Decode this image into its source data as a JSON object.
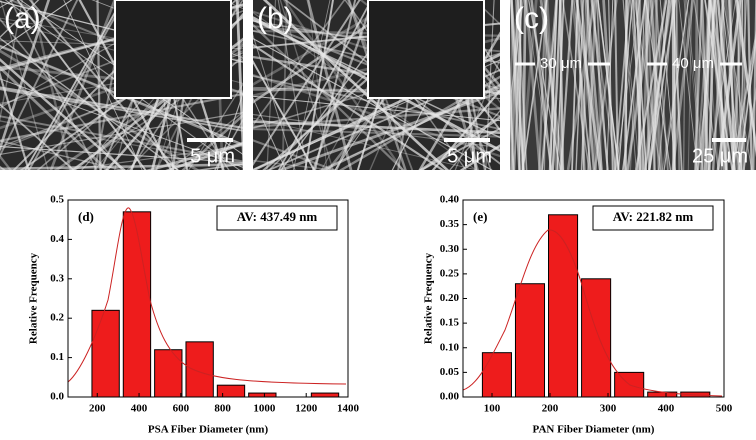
{
  "images": [
    {
      "label": "(a)",
      "scale": "5 μm"
    },
    {
      "label": "(b)",
      "scale": "5 μm"
    },
    {
      "label": "(c)",
      "scale": "25 μm",
      "marks": [
        "30 μm",
        "40 μm"
      ]
    }
  ],
  "chart_data": [
    {
      "type": "histogram",
      "panel": "(d)",
      "annotation": "AV: 437.49 nm",
      "x_label": "PSA Fiber Diameter (nm)",
      "y_label": "Relative Frequency",
      "color": "#ee1c1c",
      "bins": [
        165,
        315,
        465,
        615,
        765,
        915,
        1065,
        1215,
        1365
      ],
      "values": [
        0.22,
        0.47,
        0.12,
        0.14,
        0.03,
        0.01,
        0,
        0.01
      ],
      "xlim": [
        60,
        1400
      ],
      "xticks": [
        200,
        400,
        600,
        800,
        1000,
        1200,
        1400
      ],
      "ylim": [
        0,
        0.5
      ],
      "yticks": [
        {
          "value": 0,
          "label": "0.0"
        },
        0.1,
        0.2,
        0.3,
        0.4,
        0.5
      ]
    },
    {
      "type": "histogram",
      "panel": "(e)",
      "annotation": "AV: 221.82 nm",
      "x_label": "PAN Fiber Diameter (nm)",
      "y_label": "Relative Frequency",
      "color": "#ee1c1c",
      "bins": [
        80,
        137,
        194,
        251,
        308,
        365,
        422,
        479
      ],
      "values": [
        0.09,
        0.23,
        0.37,
        0.24,
        0.05,
        0.01,
        0.01
      ],
      "xlim": [
        50,
        500
      ],
      "xticks": [
        100,
        200,
        300,
        400,
        500
      ],
      "ylim": [
        0,
        0.4
      ],
      "yticks": [
        {
          "value": 0,
          "label": "0.00"
        },
        0.05,
        {
          "value": 0.1,
          "label": "0.10"
        },
        0.15,
        {
          "value": 0.2,
          "label": "0.20"
        },
        0.25,
        {
          "value": 0.3,
          "label": "0.30"
        },
        0.35,
        {
          "value": 0.4,
          "label": "0.40"
        }
      ]
    }
  ]
}
